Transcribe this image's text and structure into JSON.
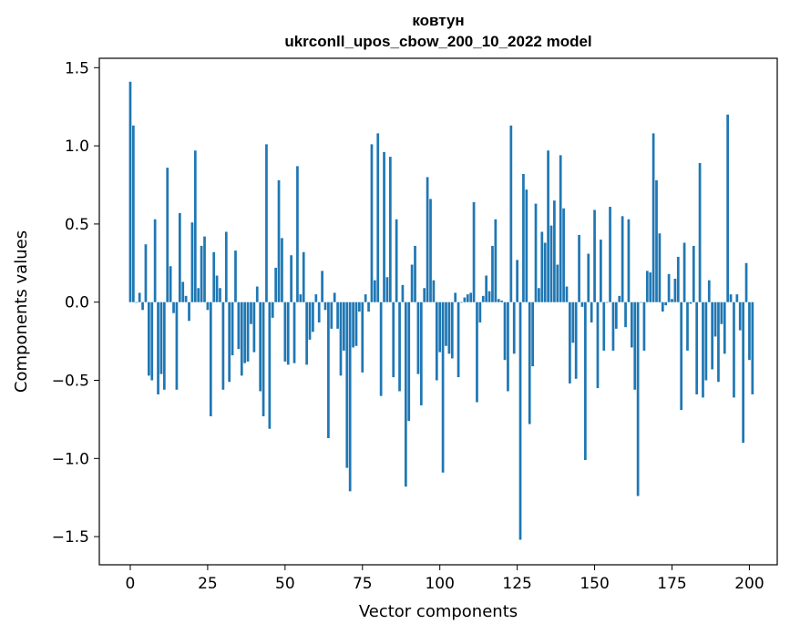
{
  "chart_data": {
    "type": "bar",
    "title": "ковтун",
    "subtitle": "ukrconll_upos_cbow_200_10_2022 model",
    "xlabel": "Vector components",
    "ylabel": "Components values",
    "xlim": [
      -10,
      209
    ],
    "ylim": [
      -1.68,
      1.56
    ],
    "xticks": [
      0,
      25,
      50,
      75,
      100,
      125,
      150,
      175,
      200
    ],
    "yticks": [
      1.5,
      1.0,
      0.5,
      0.0,
      -0.5,
      -1.0,
      -1.5
    ],
    "ytick_labels": [
      "1.5",
      "1.0",
      "0.5",
      "0.0",
      "−0.5",
      "−1.0",
      "−1.5"
    ],
    "grid": false,
    "legend": "none",
    "bar_color": "#1f77b4",
    "values": [
      1.41,
      1.13,
      0.0,
      0.06,
      -0.05,
      0.37,
      -0.47,
      -0.5,
      0.53,
      -0.59,
      -0.46,
      -0.56,
      0.86,
      0.23,
      -0.07,
      -0.56,
      0.57,
      0.13,
      0.04,
      -0.12,
      0.51,
      0.97,
      0.09,
      0.36,
      0.42,
      -0.05,
      -0.73,
      0.32,
      0.17,
      0.09,
      -0.56,
      0.45,
      -0.51,
      -0.34,
      0.33,
      -0.3,
      -0.47,
      -0.39,
      -0.38,
      -0.14,
      -0.32,
      0.1,
      -0.57,
      -0.73,
      1.01,
      -0.81,
      -0.1,
      0.22,
      0.78,
      0.41,
      -0.38,
      -0.4,
      0.3,
      -0.39,
      0.87,
      0.05,
      0.32,
      -0.4,
      -0.24,
      -0.19,
      0.05,
      -0.13,
      0.2,
      -0.05,
      -0.87,
      -0.17,
      0.06,
      -0.17,
      -0.47,
      -0.31,
      -1.06,
      -1.21,
      -0.29,
      -0.28,
      -0.06,
      -0.45,
      0.05,
      -0.06,
      1.01,
      0.14,
      1.08,
      -0.6,
      0.96,
      0.16,
      0.93,
      -0.48,
      0.53,
      -0.57,
      0.11,
      -1.18,
      -0.76,
      0.24,
      0.36,
      -0.46,
      -0.66,
      0.09,
      0.8,
      0.66,
      0.14,
      -0.5,
      -0.32,
      -1.09,
      -0.28,
      -0.33,
      -0.36,
      0.06,
      -0.48,
      0.0,
      0.03,
      0.05,
      0.06,
      0.64,
      -0.64,
      -0.13,
      0.04,
      0.17,
      0.07,
      0.36,
      0.53,
      0.02,
      0.01,
      -0.37,
      -0.57,
      1.13,
      -0.33,
      0.27,
      -1.52,
      0.82,
      0.72,
      -0.78,
      -0.41,
      0.63,
      0.09,
      0.45,
      0.38,
      0.97,
      0.49,
      0.65,
      0.24,
      0.94,
      0.6,
      0.1,
      -0.52,
      -0.26,
      -0.49,
      0.43,
      -0.03,
      -1.01,
      0.31,
      -0.13,
      0.59,
      -0.55,
      0.4,
      -0.31,
      0.0,
      0.61,
      -0.31,
      -0.17,
      0.04,
      0.55,
      -0.16,
      0.53,
      -0.29,
      -0.56,
      -1.24,
      0.0,
      -0.31,
      0.2,
      0.19,
      1.08,
      0.78,
      0.44,
      -0.06,
      -0.02,
      0.18,
      0.02,
      0.15,
      0.29,
      -0.69,
      0.38,
      -0.31,
      -0.01,
      0.36,
      -0.59,
      0.89,
      -0.61,
      -0.5,
      0.14,
      -0.43,
      -0.22,
      -0.51,
      -0.14,
      -0.33,
      1.2,
      0.05,
      -0.61,
      0.05,
      -0.18,
      -0.9,
      0.25,
      -0.37,
      -0.59
    ]
  }
}
